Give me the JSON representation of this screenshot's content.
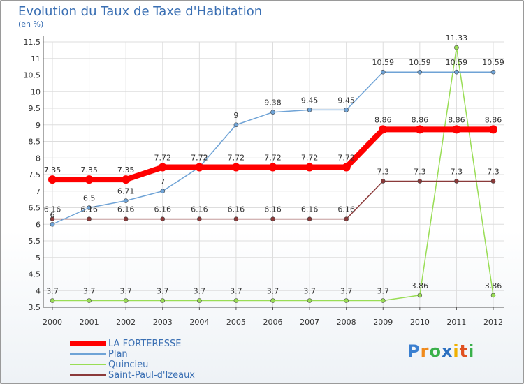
{
  "chart_data": {
    "type": "line",
    "title": "Evolution du Taux de Taxe d'Habitation",
    "units": "(en %)",
    "categories": [
      "2000",
      "2001",
      "2002",
      "2003",
      "2004",
      "2005",
      "2006",
      "2007",
      "2008",
      "2009",
      "2010",
      "2011",
      "2012"
    ],
    "y_ticks": [
      "3.5",
      "4",
      "4.5",
      "5",
      "5.5",
      "6",
      "6.5",
      "7",
      "7.5",
      "8",
      "8.5",
      "9",
      "9.5",
      "10",
      "10.5",
      "11",
      "11.5"
    ],
    "ylim": [
      3.5,
      11.5
    ],
    "grid": true,
    "series": [
      {
        "name": "LA FORTERESSE",
        "color": "#ff0000",
        "values": [
          7.35,
          7.35,
          7.35,
          7.72,
          7.72,
          7.72,
          7.72,
          7.72,
          7.72,
          8.86,
          8.86,
          8.86,
          8.86
        ],
        "labels": [
          "7.35",
          "7.35",
          "7.35",
          "7.72",
          "7.72",
          "7.72",
          "7.72",
          "7.72",
          "7.72",
          "8.86",
          "8.86",
          "8.86",
          "8.86"
        ]
      },
      {
        "name": "Plan",
        "color": "#6fa3d6",
        "values": [
          6.0,
          6.5,
          6.71,
          7.0,
          7.72,
          9.0,
          9.38,
          9.45,
          9.45,
          10.59,
          10.59,
          10.59,
          10.59
        ],
        "labels": [
          "6",
          "6.5",
          "6.71",
          "7",
          "7.72",
          "9",
          "9.38",
          "9.45",
          "9.45",
          "10.59",
          "10.59",
          "10.59",
          "10.59"
        ]
      },
      {
        "name": "Quincieu",
        "color": "#99dd55",
        "values": [
          3.7,
          3.7,
          3.7,
          3.7,
          3.7,
          3.7,
          3.7,
          3.7,
          3.7,
          3.7,
          3.86,
          11.33,
          3.86
        ],
        "labels": [
          "3.7",
          "3.7",
          "3.7",
          "3.7",
          "3.7",
          "3.7",
          "3.7",
          "3.7",
          "3.7",
          "3.7",
          "3.86",
          "11.33",
          "3.86"
        ]
      },
      {
        "name": "Saint-Paul-d'Izeaux",
        "color": "#8b3a3a",
        "values": [
          6.16,
          6.16,
          6.16,
          6.16,
          6.16,
          6.16,
          6.16,
          6.16,
          6.16,
          7.3,
          7.3,
          7.3,
          7.3
        ],
        "labels": [
          "6.16",
          "6.16",
          "6.16",
          "6.16",
          "6.16",
          "6.16",
          "6.16",
          "6.16",
          "6.16",
          "7.3",
          "7.3",
          "7.3",
          "7.3"
        ]
      }
    ]
  },
  "logo": {
    "letters": [
      "P",
      "r",
      "o",
      "x",
      "i",
      "t",
      "i"
    ],
    "colors": [
      "#3a7fd0",
      "#f08a1c",
      "#3ab04a",
      "#2a6fc0",
      "#f0b000",
      "#e05020",
      "#3ab04a"
    ]
  }
}
